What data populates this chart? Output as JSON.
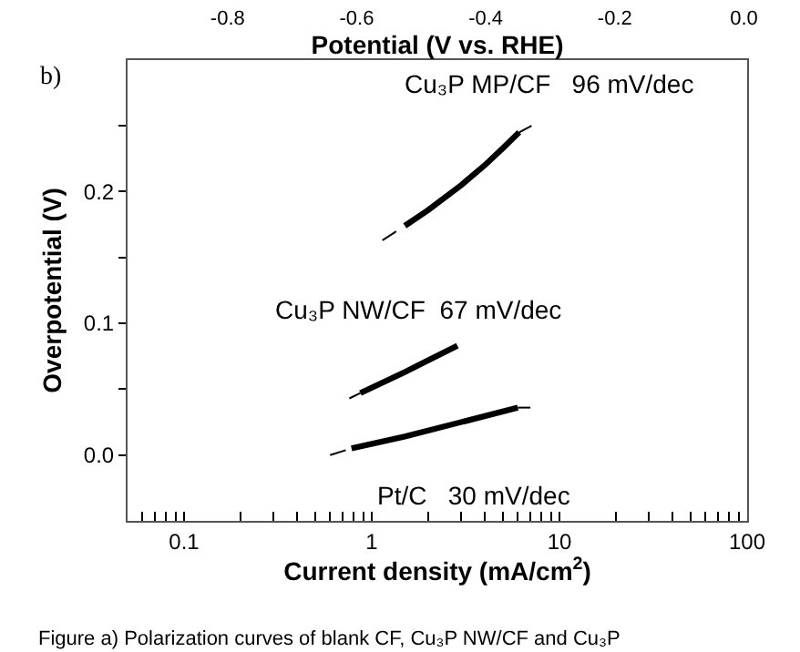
{
  "chart_data": {
    "type": "line",
    "xlabel": "Current density (mA/cm$^{2}$)",
    "ylabel": "Overpotential (V)",
    "x2label": "Potential (V vs. RHE)",
    "x2lim": [
      -0.955,
      0.005
    ],
    "x2ticks": [
      {
        "value": -0.8,
        "label": "-0.8"
      },
      {
        "value": -0.6,
        "label": "-0.6"
      },
      {
        "value": -0.4,
        "label": "-0.4"
      },
      {
        "value": -0.2,
        "label": "-0.2"
      },
      {
        "value": 0.0,
        "label": "0.0"
      }
    ],
    "log": "x",
    "xlim": [
      0.05,
      100
    ],
    "xticks": [
      0.1,
      1,
      10,
      100,
      {
        "value": 0.05,
        "label": null
      },
      {
        "value": 0.06,
        "label": null
      },
      {
        "value": 0.07,
        "label": null
      },
      {
        "value": 0.08,
        "label": null
      },
      {
        "value": 0.09,
        "label": null
      },
      {
        "value": 0.2,
        "label": null
      },
      {
        "value": 0.3,
        "label": null
      },
      {
        "value": 0.4,
        "label": null
      },
      {
        "value": 0.5,
        "label": null
      },
      {
        "value": 0.6,
        "label": null
      },
      {
        "value": 0.7,
        "label": null
      },
      {
        "value": 0.8,
        "label": null
      },
      {
        "value": 0.9,
        "label": null
      },
      {
        "value": 2,
        "label": null
      },
      {
        "value": 3,
        "label": null
      },
      {
        "value": 4,
        "label": null
      },
      {
        "value": 5,
        "label": null
      },
      {
        "value": 6,
        "label": null
      },
      {
        "value": 7,
        "label": null
      },
      {
        "value": 8,
        "label": null
      },
      {
        "value": 9,
        "label": null
      },
      {
        "value": 20,
        "label": null
      },
      {
        "value": 30,
        "label": null
      },
      {
        "value": 40,
        "label": null
      },
      {
        "value": 50,
        "label": null
      },
      {
        "value": 60,
        "label": null
      },
      {
        "value": 70,
        "label": null
      },
      {
        "value": 80,
        "label": null
      },
      {
        "value": 90,
        "label": null
      }
    ],
    "ylim": [
      -0.05,
      0.3
    ],
    "yticks": [
      {
        "value": 0.0,
        "label": "0.0"
      },
      0.1,
      0.2,
      {
        "value": 0.05,
        "label": null
      },
      {
        "value": 0.15,
        "label": null
      },
      {
        "value": 0.25,
        "label": null
      }
    ],
    "marker": "none",
    "series": [
      {
        "color": "#000000",
        "line_style": "solid",
        "x": [
          1.5,
          2.0,
          3.0,
          4.0,
          5.0,
          6.1
        ],
        "values": [
          0.174,
          0.186,
          0.205,
          0.22,
          0.233,
          0.245
        ]
      },
      {
        "color": "#000000",
        "line_style": "dashed",
        "x": [
          1.14,
          1.5
        ],
        "values": [
          0.163,
          0.174
        ]
      },
      {
        "color": "#000000",
        "line_style": "dashed",
        "x": [
          6.1,
          7.1
        ],
        "values": [
          0.245,
          0.25
        ]
      },
      {
        "color": "#000000",
        "line_style": "solid",
        "x": [
          0.87,
          1.5,
          2.0,
          2.86
        ],
        "values": [
          0.047,
          0.063,
          0.072,
          0.083
        ]
      },
      {
        "color": "#000000",
        "line_style": "dashed",
        "x": [
          0.76,
          0.87
        ],
        "values": [
          0.043,
          0.047
        ]
      },
      {
        "color": "#000000",
        "line_style": "solid",
        "x": [
          0.78,
          1.5,
          3.0,
          6.0
        ],
        "values": [
          0.005,
          0.014,
          0.025,
          0.036
        ]
      },
      {
        "color": "#000000",
        "line_style": "dashed",
        "x": [
          0.6,
          0.78
        ],
        "values": [
          0.0,
          0.005
        ]
      },
      {
        "color": "#000000",
        "line_style": "dashed",
        "x": [
          6.0,
          7.0
        ],
        "values": [
          0.036,
          0.036
        ]
      }
    ],
    "annotations": [
      "Cu₃P MP/CF   96 mV/dec",
      "Cu₃P NW/CF  67 mV/dec",
      "Pt/C   30 mV/dec",
      "b)",
      "Figure a) Polarization curves of blank CF, Cu₃P NW/CF and Cu₃P"
    ]
  }
}
